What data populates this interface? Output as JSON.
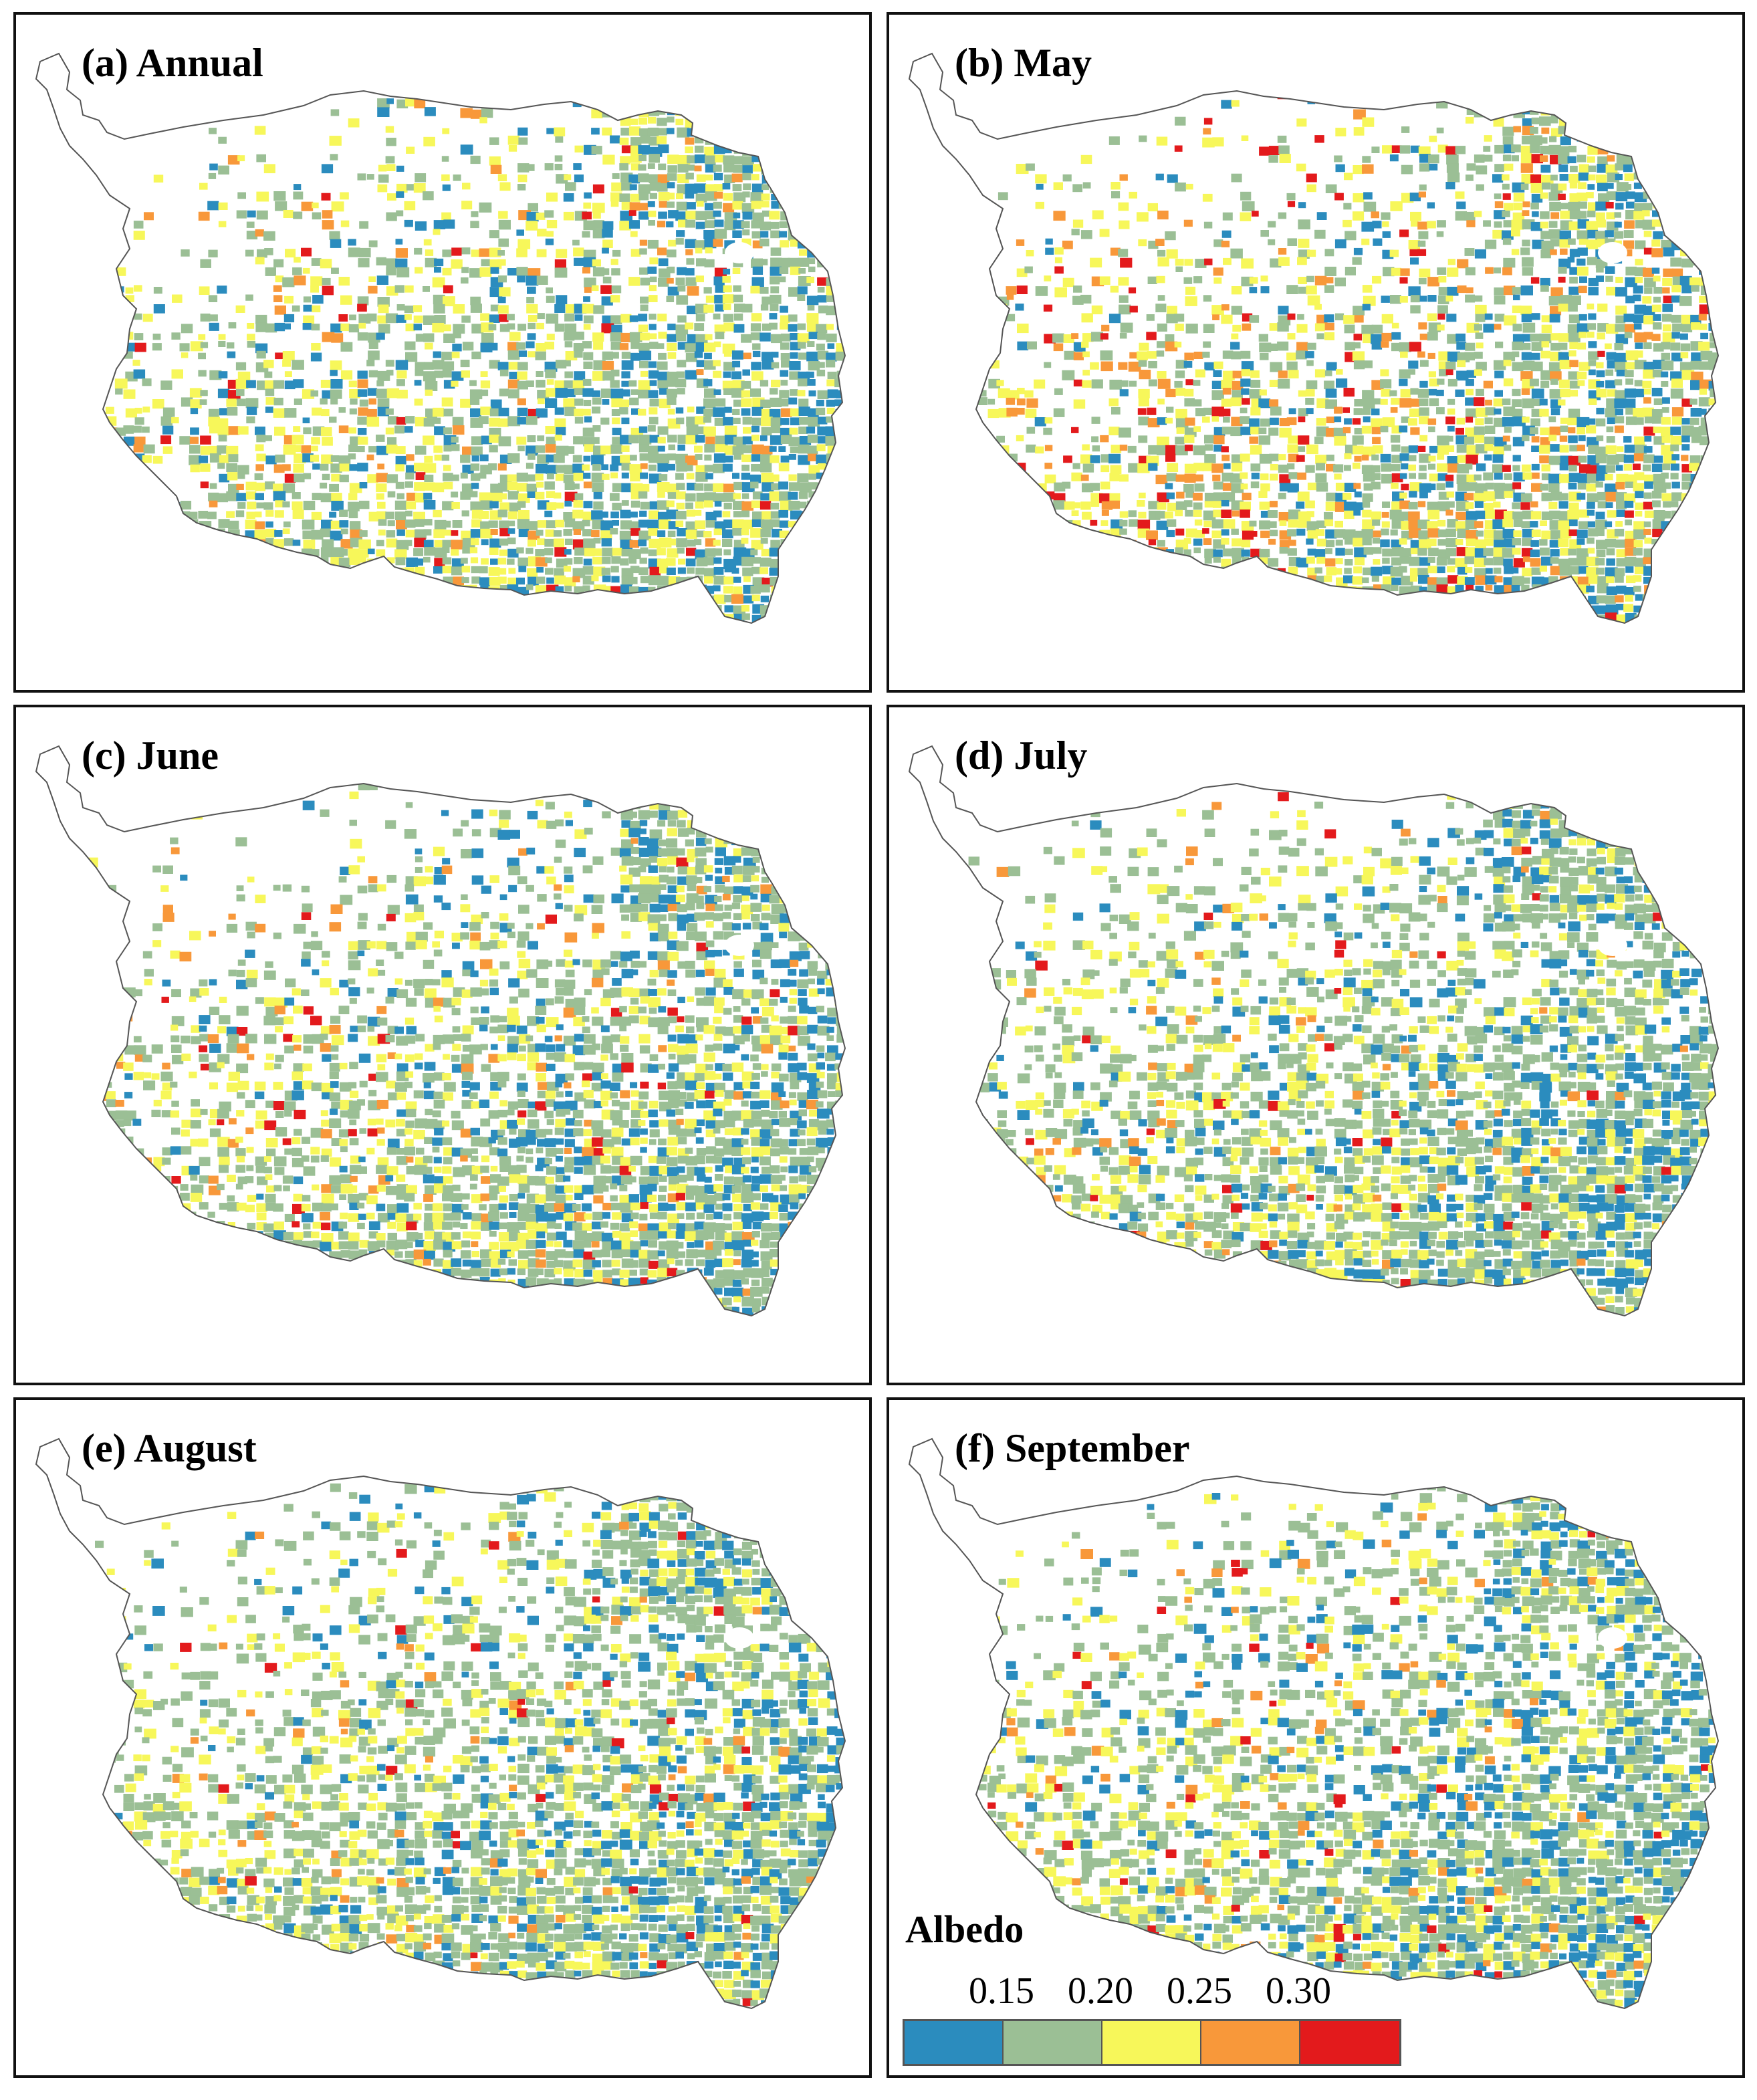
{
  "panels": [
    {
      "label": "(a) Annual",
      "mix": [
        0.16,
        0.48,
        0.28,
        0.055,
        0.025
      ]
    },
    {
      "label": "(b) May",
      "mix": [
        0.13,
        0.38,
        0.3,
        0.12,
        0.07
      ]
    },
    {
      "label": "(c) June",
      "mix": [
        0.15,
        0.5,
        0.26,
        0.06,
        0.03
      ]
    },
    {
      "label": "(d) July",
      "mix": [
        0.15,
        0.54,
        0.25,
        0.04,
        0.02
      ]
    },
    {
      "label": "(e) August",
      "mix": [
        0.15,
        0.55,
        0.24,
        0.04,
        0.02
      ]
    },
    {
      "label": "(f) September",
      "mix": [
        0.17,
        0.52,
        0.24,
        0.045,
        0.025
      ]
    }
  ],
  "legend": {
    "title": "Albedo",
    "ticks": [
      "0.15",
      "0.20",
      "0.25",
      "0.30"
    ],
    "colors": [
      "#2b8cbe",
      "#9bbf95",
      "#f7f75a",
      "#f8983a",
      "#e31a1c"
    ]
  },
  "colors": {
    "outline": "#555555",
    "frame": "#111111"
  }
}
